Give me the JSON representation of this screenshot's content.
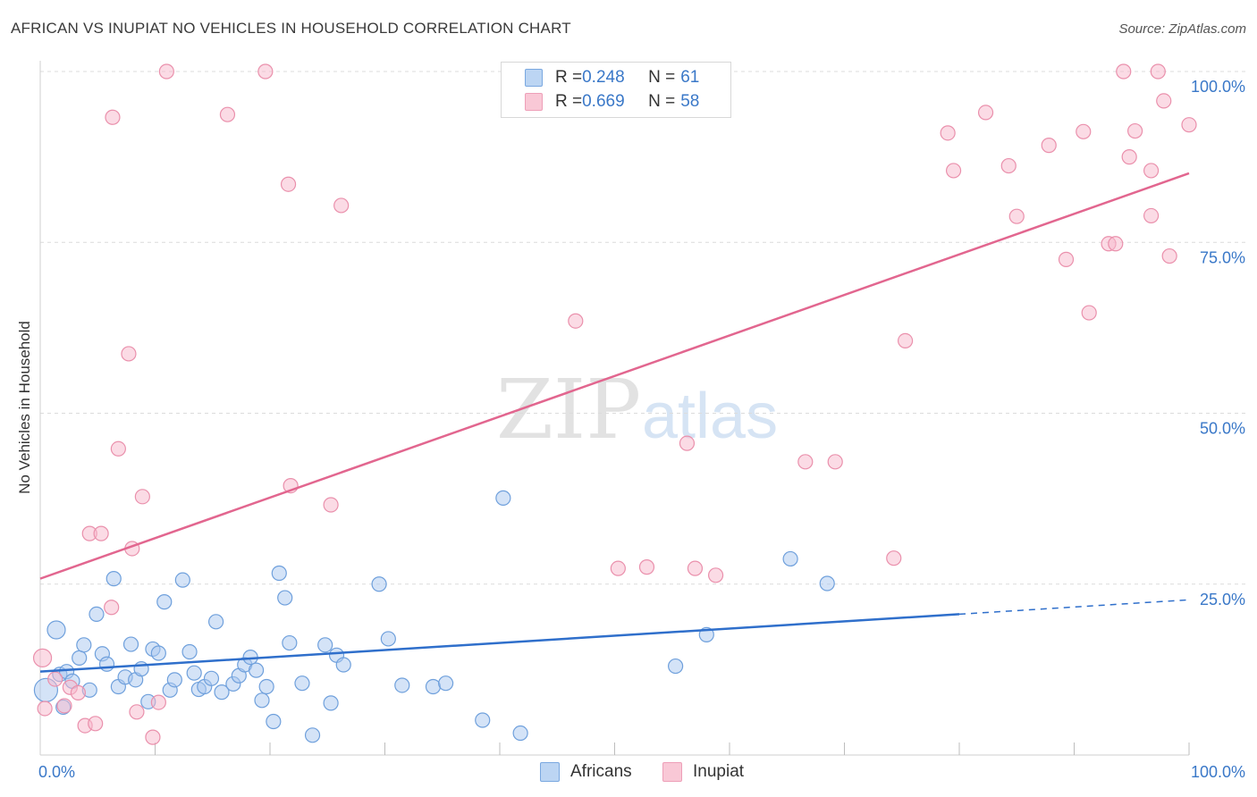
{
  "title": "AFRICAN VS INUPIAT NO VEHICLES IN HOUSEHOLD CORRELATION CHART",
  "source": "Source: ZipAtlas.com",
  "watermark": {
    "zip": "ZIP",
    "atlas": "atlas"
  },
  "legend": {
    "africans": {
      "r_label": "R = ",
      "r_value": "0.248",
      "n_label": "N = ",
      "n_value": "61"
    },
    "inupiat": {
      "r_label": "R = ",
      "r_value": "0.669",
      "n_label": "N = ",
      "n_value": "58"
    }
  },
  "colors": {
    "africans_fill": "#a9c8ef",
    "africans_stroke": "#6fa0dc",
    "africans_line": "#2f6fcb",
    "inupiat_fill": "#f7b8cb",
    "inupiat_stroke": "#ea90ac",
    "inupiat_line": "#e2668f",
    "tick_label": "#3a78c8",
    "grid": "#dcdcdc"
  },
  "chart_data": {
    "type": "scatter",
    "title": "AFRICAN VS INUPIAT NO VEHICLES IN HOUSEHOLD CORRELATION CHART",
    "xlabel": "",
    "ylabel": "No Vehicles in Household",
    "xlim": [
      0,
      100
    ],
    "ylim": [
      0,
      100
    ],
    "x_tick_labels": [
      "0.0%",
      "100.0%"
    ],
    "y_ticks": [
      25,
      50,
      75,
      100
    ],
    "y_tick_labels": [
      "25.0%",
      "50.0%",
      "75.0%",
      "100.0%"
    ],
    "grid": true,
    "series": [
      {
        "name": "Africans",
        "trend": {
          "x0": 0,
          "y0": 12.2,
          "x1": 80,
          "y1": 20.6,
          "dashed_to": 100,
          "dashed_y": 22.7
        },
        "points": [
          [
            0.5,
            9.5,
            3
          ],
          [
            1.4,
            18.3,
            2
          ],
          [
            1.7,
            11.8,
            1
          ],
          [
            2.0,
            7.0,
            1
          ],
          [
            2.3,
            12.2,
            1
          ],
          [
            2.8,
            10.8,
            1
          ],
          [
            3.4,
            14.2,
            1
          ],
          [
            3.8,
            16.1,
            1
          ],
          [
            4.3,
            9.5,
            1
          ],
          [
            4.9,
            20.6,
            1
          ],
          [
            5.4,
            14.8,
            1
          ],
          [
            5.8,
            13.3,
            1
          ],
          [
            6.4,
            25.8,
            1
          ],
          [
            6.8,
            10.0,
            1
          ],
          [
            7.4,
            11.4,
            1
          ],
          [
            7.9,
            16.2,
            1
          ],
          [
            8.3,
            11.0,
            1
          ],
          [
            8.8,
            12.6,
            1
          ],
          [
            9.4,
            7.8,
            1
          ],
          [
            9.8,
            15.5,
            1
          ],
          [
            10.3,
            14.9,
            1
          ],
          [
            10.8,
            22.4,
            1
          ],
          [
            11.3,
            9.5,
            1
          ],
          [
            11.7,
            11.0,
            1
          ],
          [
            12.4,
            25.6,
            1
          ],
          [
            13.0,
            15.1,
            1
          ],
          [
            13.4,
            12.0,
            1
          ],
          [
            13.8,
            9.6,
            1
          ],
          [
            14.3,
            10.0,
            1
          ],
          [
            14.9,
            11.2,
            1
          ],
          [
            15.3,
            19.5,
            1
          ],
          [
            15.8,
            9.2,
            1
          ],
          [
            16.8,
            10.4,
            1
          ],
          [
            17.3,
            11.6,
            1
          ],
          [
            17.8,
            13.2,
            1
          ],
          [
            18.3,
            14.3,
            1
          ],
          [
            18.8,
            12.4,
            1
          ],
          [
            19.3,
            8.0,
            1
          ],
          [
            19.7,
            10.0,
            1
          ],
          [
            20.3,
            4.9,
            1
          ],
          [
            20.8,
            26.6,
            1
          ],
          [
            21.3,
            23.0,
            1
          ],
          [
            21.7,
            16.4,
            1
          ],
          [
            22.8,
            10.5,
            1
          ],
          [
            23.7,
            2.9,
            1
          ],
          [
            24.8,
            16.1,
            1
          ],
          [
            25.3,
            7.6,
            1
          ],
          [
            25.8,
            14.6,
            1
          ],
          [
            26.4,
            13.2,
            1
          ],
          [
            29.5,
            25.0,
            1
          ],
          [
            30.3,
            17.0,
            1
          ],
          [
            31.5,
            10.2,
            1
          ],
          [
            34.2,
            10.0,
            1
          ],
          [
            35.3,
            10.5,
            1
          ],
          [
            38.5,
            5.1,
            1
          ],
          [
            40.3,
            37.6,
            1
          ],
          [
            41.8,
            3.2,
            1
          ],
          [
            55.3,
            13.0,
            1
          ],
          [
            58.0,
            17.6,
            1
          ],
          [
            65.3,
            28.7,
            1
          ],
          [
            68.5,
            25.1,
            1
          ]
        ]
      },
      {
        "name": "Inupiat",
        "trend": {
          "x0": 0,
          "y0": 25.8,
          "x1": 100,
          "y1": 85.1
        },
        "points": [
          [
            0.2,
            14.2,
            2
          ],
          [
            0.4,
            6.8,
            1
          ],
          [
            1.3,
            11.1,
            1
          ],
          [
            2.1,
            7.2,
            1
          ],
          [
            2.6,
            9.9,
            1
          ],
          [
            3.3,
            9.1,
            1
          ],
          [
            3.9,
            4.3,
            1
          ],
          [
            4.3,
            32.4,
            1
          ],
          [
            4.8,
            4.6,
            1
          ],
          [
            5.3,
            32.4,
            1
          ],
          [
            6.2,
            21.6,
            1
          ],
          [
            6.3,
            93.3,
            1
          ],
          [
            6.8,
            44.8,
            1
          ],
          [
            7.7,
            58.7,
            1
          ],
          [
            8.0,
            30.2,
            1
          ],
          [
            8.4,
            6.3,
            1
          ],
          [
            8.9,
            37.8,
            1
          ],
          [
            9.8,
            2.6,
            1
          ],
          [
            10.3,
            7.7,
            1
          ],
          [
            11.0,
            100.0,
            1
          ],
          [
            16.3,
            93.7,
            1
          ],
          [
            19.6,
            100.0,
            1
          ],
          [
            21.6,
            83.5,
            1
          ],
          [
            21.8,
            39.4,
            1
          ],
          [
            25.3,
            36.6,
            1
          ],
          [
            26.2,
            80.4,
            1
          ],
          [
            46.6,
            63.5,
            1
          ],
          [
            50.3,
            27.3,
            1
          ],
          [
            52.8,
            27.5,
            1
          ],
          [
            56.3,
            45.6,
            1
          ],
          [
            57.0,
            27.3,
            1
          ],
          [
            58.8,
            26.3,
            1
          ],
          [
            66.6,
            42.9,
            1
          ],
          [
            69.2,
            42.9,
            1
          ],
          [
            74.3,
            28.8,
            1
          ],
          [
            75.3,
            60.6,
            1
          ],
          [
            79.0,
            91.0,
            1
          ],
          [
            79.5,
            85.5,
            1
          ],
          [
            82.3,
            94.0,
            1
          ],
          [
            84.3,
            86.2,
            1
          ],
          [
            85.0,
            78.8,
            1
          ],
          [
            87.8,
            89.2,
            1
          ],
          [
            89.3,
            72.5,
            1
          ],
          [
            90.8,
            91.2,
            1
          ],
          [
            91.3,
            64.7,
            1
          ],
          [
            93.0,
            74.8,
            1
          ],
          [
            93.6,
            74.8,
            1
          ],
          [
            94.3,
            100.0,
            1
          ],
          [
            94.8,
            87.5,
            1
          ],
          [
            95.3,
            91.3,
            1
          ],
          [
            96.7,
            85.5,
            1
          ],
          [
            96.7,
            78.9,
            1
          ],
          [
            97.3,
            100.0,
            1
          ],
          [
            97.8,
            95.7,
            1
          ],
          [
            98.3,
            73.0,
            1
          ],
          [
            100.0,
            92.2,
            1
          ]
        ]
      }
    ]
  }
}
